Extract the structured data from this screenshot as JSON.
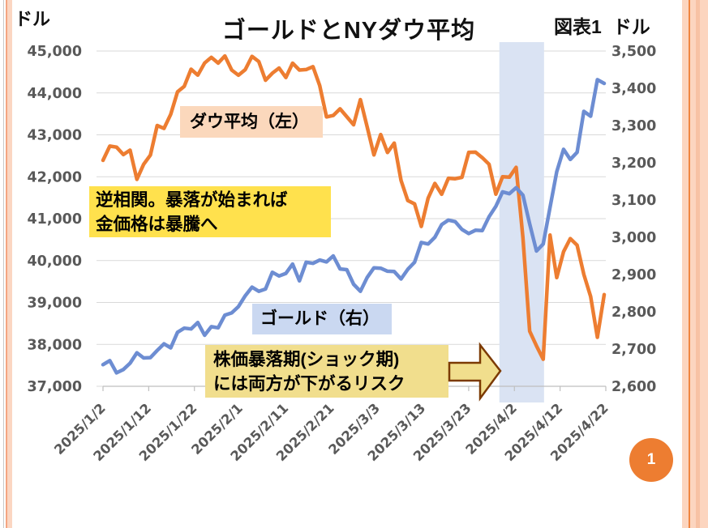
{
  "page": {
    "unit_left": "ドル",
    "title": "ゴールドとNYダウ平均",
    "figure_label": "図表1",
    "unit_right": "ドル",
    "page_number": "1"
  },
  "annotations": {
    "dow_label": "ダウ平均（左）",
    "gold_label": "ゴールド（右）",
    "inverse_note_line1": "逆相関。暴落が始まれば",
    "inverse_note_line2": "金価格は暴騰へ",
    "crash_note_line1": "株価暴落期(ショック期)",
    "crash_note_line2": "には両方が下がるリスク"
  },
  "colors": {
    "dow_line": "#ed7d31",
    "gold_line": "#6d8dd2",
    "grid": "#d9d9d9",
    "axis": "#bfbfbf",
    "tick_text": "#595959",
    "band": "#dae3f3",
    "dow_label_bg": "#fbd8bc",
    "gold_label_bg": "#cad8f1",
    "note1_bg": "#ffe14d",
    "note2_bg": "#f1de8d",
    "arrow_fill": "#f1de8d",
    "arrow_stroke": "#7c3a03",
    "page_circle": "#ed7d31"
  },
  "chart_data": {
    "type": "line",
    "title": "ゴールドとNYダウ平均",
    "x_tick_labels": [
      "2025/1/2",
      "2025/1/12",
      "2025/1/22",
      "2025/2/1",
      "2025/2/11",
      "2025/2/21",
      "2025/3/3",
      "2025/3/13",
      "2025/3/23",
      "2025/4/2",
      "2025/4/12",
      "2025/4/22"
    ],
    "left_axis": {
      "label": "ドル",
      "range": [
        37000,
        45000
      ],
      "ticks": [
        "45,000",
        "44,000",
        "43,000",
        "42,000",
        "41,000",
        "40,000",
        "39,000",
        "38,000",
        "37,000"
      ]
    },
    "right_axis": {
      "label": "ドル",
      "range": [
        2600,
        3500
      ],
      "ticks": [
        "3,500",
        "3,400",
        "3,300",
        "3,200",
        "3,100",
        "3,000",
        "2,900",
        "2,800",
        "2,700",
        "2,600"
      ]
    },
    "shaded_region": {
      "from": "2025/3/31",
      "to": "2025/4/8"
    },
    "dates": [
      "2025/1/2",
      "2025/1/3",
      "2025/1/6",
      "2025/1/7",
      "2025/1/8",
      "2025/1/10",
      "2025/1/13",
      "2025/1/14",
      "2025/1/15",
      "2025/1/16",
      "2025/1/17",
      "2025/1/21",
      "2025/1/22",
      "2025/1/23",
      "2025/1/24",
      "2025/1/27",
      "2025/1/28",
      "2025/1/29",
      "2025/1/30",
      "2025/1/31",
      "2025/2/3",
      "2025/2/4",
      "2025/2/5",
      "2025/2/6",
      "2025/2/7",
      "2025/2/10",
      "2025/2/11",
      "2025/2/12",
      "2025/2/13",
      "2025/2/14",
      "2025/2/18",
      "2025/2/19",
      "2025/2/20",
      "2025/2/21",
      "2025/2/24",
      "2025/2/25",
      "2025/2/26",
      "2025/2/27",
      "2025/2/28",
      "2025/3/3",
      "2025/3/4",
      "2025/3/5",
      "2025/3/6",
      "2025/3/7",
      "2025/3/10",
      "2025/3/11",
      "2025/3/12",
      "2025/3/13",
      "2025/3/14",
      "2025/3/17",
      "2025/3/18",
      "2025/3/19",
      "2025/3/20",
      "2025/3/21",
      "2025/3/24",
      "2025/3/25",
      "2025/3/26",
      "2025/3/27",
      "2025/3/28",
      "2025/3/31",
      "2025/4/1",
      "2025/4/2",
      "2025/4/3",
      "2025/4/4",
      "2025/4/7",
      "2025/4/8",
      "2025/4/9",
      "2025/4/10",
      "2025/4/11",
      "2025/4/14",
      "2025/4/15",
      "2025/4/16",
      "2025/4/17",
      "2025/4/21",
      "2025/4/22"
    ],
    "series": [
      {
        "name": "ダウ平均（左）",
        "axis": "left",
        "color": "#ed7d31",
        "values": [
          42392,
          42732,
          42707,
          42528,
          42635,
          41938,
          42297,
          42518,
          43222,
          43153,
          43488,
          44026,
          44157,
          44565,
          44424,
          44714,
          44850,
          44713,
          44882,
          44545,
          44422,
          44556,
          44873,
          44748,
          44303,
          44470,
          44594,
          44369,
          44711,
          44546,
          44557,
          44627,
          44177,
          43428,
          43461,
          43621,
          43433,
          43239,
          43841,
          43191,
          42521,
          43007,
          42579,
          42802,
          41912,
          41433,
          41351,
          40814,
          41488,
          41841,
          41581,
          41964,
          41953,
          41985,
          42583,
          42587,
          42455,
          42299,
          41583,
          42001,
          41990,
          42225,
          40546,
          38315,
          37965,
          37646,
          40608,
          39594,
          40212,
          40525,
          40369,
          39669,
          39142,
          38170,
          39187
        ]
      },
      {
        "name": "ゴールド（右）",
        "axis": "right",
        "color": "#6d8dd2",
        "values": [
          2658,
          2669,
          2636,
          2645,
          2662,
          2690,
          2676,
          2677,
          2696,
          2714,
          2703,
          2745,
          2756,
          2754,
          2771,
          2737,
          2760,
          2757,
          2791,
          2797,
          2814,
          2843,
          2866,
          2855,
          2861,
          2906,
          2896,
          2903,
          2928,
          2883,
          2933,
          2930,
          2939,
          2934,
          2950,
          2915,
          2913,
          2874,
          2855,
          2892,
          2918,
          2917,
          2909,
          2908,
          2888,
          2914,
          2933,
          2986,
          2982,
          3000,
          3034,
          3046,
          3042,
          3021,
          3010,
          3019,
          3018,
          3055,
          3083,
          3122,
          3117,
          3133,
          3113,
          3036,
          2963,
          2982,
          3080,
          3176,
          3236,
          3209,
          3228,
          3338,
          3325,
          3423,
          3413
        ]
      }
    ]
  }
}
